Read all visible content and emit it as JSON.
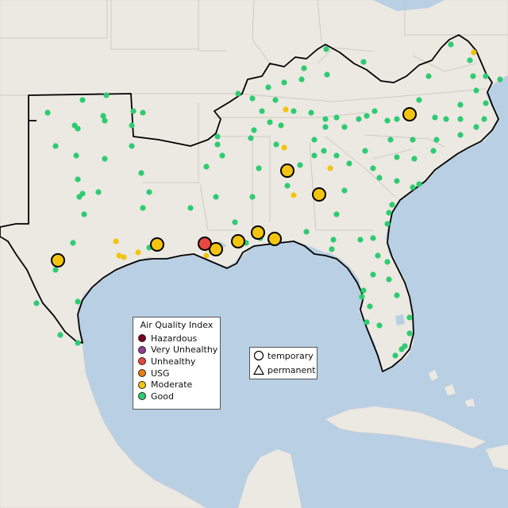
{
  "legend": {
    "title": "Air Quality Index",
    "categories": [
      {
        "label": "Hazardous",
        "color": "#7e0023"
      },
      {
        "label": "Very Unhealthy",
        "color": "#8f3f97"
      },
      {
        "label": "Unhealthy",
        "color": "#e8483f"
      },
      {
        "label": "USG",
        "color": "#ec7b13"
      },
      {
        "label": "Moderate",
        "color": "#f2c40f"
      },
      {
        "label": "Good",
        "color": "#2ecc71"
      }
    ]
  },
  "monitor_types": [
    {
      "label": "temporary",
      "icon": "circle-icon"
    },
    {
      "label": "permanent",
      "icon": "triangle-icon"
    }
  ],
  "colors": {
    "water": "#b9cfe3",
    "land": "#ece8e2",
    "border": "#000000"
  }
}
